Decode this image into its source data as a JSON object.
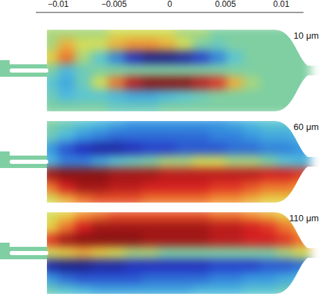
{
  "chart_data": {
    "type": "heatmap",
    "colorbar": {
      "range": [
        -0.012,
        0.012
      ],
      "ticks": [
        {
          "value": -0.01,
          "label": "−0.01"
        },
        {
          "value": -0.005,
          "label": "−0.005"
        },
        0,
        0.005,
        0.01
      ]
    },
    "panels": [
      {
        "label": "10 μm",
        "cells": [
          [
            0.001,
            0.001,
            0.001,
            0.001,
            0.002,
            0.002,
            0.002,
            0.002,
            0.001,
            0.001,
            0,
            0,
            0,
            0,
            0,
            0
          ],
          [
            0.001,
            0.004,
            0.002,
            0.002,
            0.004,
            0.005,
            0.005,
            0.004,
            0.002,
            0,
            -0.001,
            0,
            0,
            0,
            0,
            0
          ],
          [
            0.003,
            0.006,
            0.001,
            -0.002,
            -0.006,
            -0.01,
            -0.012,
            -0.012,
            -0.011,
            -0.009,
            -0.006,
            -0.002,
            0,
            0,
            0,
            0
          ],
          [
            0,
            -0.003,
            -0.001,
            0,
            0,
            0,
            0,
            0,
            0,
            0,
            0,
            0,
            0,
            0,
            0,
            0
          ],
          [
            -0.002,
            -0.004,
            -0.001,
            0.002,
            0.006,
            0.01,
            0.012,
            0.012,
            0.012,
            0.01,
            0.008,
            0.004,
            0.001,
            0,
            0,
            0
          ],
          [
            -0.001,
            -0.003,
            -0.002,
            -0.002,
            -0.003,
            -0.004,
            -0.004,
            -0.003,
            -0.002,
            -0.001,
            0,
            0,
            0,
            0,
            0,
            0
          ],
          [
            0,
            0,
            0,
            0,
            -0.001,
            -0.001,
            -0.001,
            0,
            0,
            0,
            0,
            0,
            0,
            0,
            0,
            0
          ]
        ]
      },
      {
        "label": "60 μm",
        "cells": [
          [
            0,
            -0.001,
            -0.002,
            -0.003,
            -0.004,
            -0.005,
            -0.005,
            -0.005,
            -0.005,
            -0.005,
            -0.005,
            -0.004,
            -0.003,
            -0.002,
            -0.002,
            -0.001
          ],
          [
            -0.001,
            -0.003,
            -0.005,
            -0.006,
            -0.007,
            -0.007,
            -0.007,
            -0.007,
            -0.007,
            -0.007,
            -0.006,
            -0.006,
            -0.005,
            -0.004,
            -0.004,
            -0.003
          ],
          [
            -0.005,
            -0.008,
            -0.01,
            -0.011,
            -0.011,
            -0.01,
            -0.009,
            -0.009,
            -0.008,
            -0.008,
            -0.008,
            -0.007,
            -0.007,
            -0.006,
            -0.006,
            -0.005
          ],
          [
            -0.003,
            -0.006,
            -0.006,
            -0.004,
            -0.002,
            -0.001,
            0,
            0.001,
            0.001,
            0.002,
            0.002,
            0.001,
            0.001,
            0,
            -0.002,
            -0.003
          ],
          [
            0.011,
            0.012,
            0.012,
            0.012,
            0.011,
            0.011,
            0.011,
            0.01,
            0.01,
            0.01,
            0.01,
            0.01,
            0.01,
            0.009,
            0.009,
            0.008
          ],
          [
            0.006,
            0.009,
            0.011,
            0.011,
            0.01,
            0.01,
            0.009,
            0.009,
            0.009,
            0.009,
            0.008,
            0.008,
            0.007,
            0.006,
            0.006,
            0.005
          ],
          [
            0.002,
            0.004,
            0.006,
            0.007,
            0.007,
            0.007,
            0.006,
            0.006,
            0.006,
            0.006,
            0.005,
            0.005,
            0.004,
            0.003,
            0.003,
            0.002
          ]
        ]
      },
      {
        "label": "110 μm",
        "cells": [
          [
            0.002,
            0.003,
            0.005,
            0.006,
            0.007,
            0.007,
            0.007,
            0.007,
            0.007,
            0.007,
            0.006,
            0.006,
            0.005,
            0.004,
            0.003,
            0.002
          ],
          [
            0.003,
            0.006,
            0.009,
            0.011,
            0.011,
            0.011,
            0.011,
            0.011,
            0.011,
            0.011,
            0.01,
            0.01,
            0.009,
            0.008,
            0.006,
            0.004
          ],
          [
            0.008,
            0.011,
            0.012,
            0.012,
            0.012,
            0.012,
            0.011,
            0.011,
            0.011,
            0.011,
            0.01,
            0.01,
            0.009,
            0.009,
            0.008,
            0.006
          ],
          [
            0.002,
            0.003,
            0.004,
            0.003,
            0.002,
            0.001,
            0.001,
            0,
            0,
            0,
            0,
            0,
            0,
            0,
            0.001,
            0.002
          ],
          [
            -0.011,
            -0.012,
            -0.012,
            -0.011,
            -0.011,
            -0.01,
            -0.01,
            -0.01,
            -0.01,
            -0.01,
            -0.009,
            -0.009,
            -0.009,
            -0.008,
            -0.008,
            -0.007
          ],
          [
            -0.005,
            -0.007,
            -0.008,
            -0.008,
            -0.008,
            -0.008,
            -0.007,
            -0.007,
            -0.007,
            -0.007,
            -0.006,
            -0.006,
            -0.005,
            -0.005,
            -0.004,
            -0.003
          ],
          [
            -0.001,
            -0.002,
            -0.003,
            -0.004,
            -0.004,
            -0.004,
            -0.004,
            -0.004,
            -0.004,
            -0.003,
            -0.003,
            -0.003,
            -0.002,
            -0.002,
            -0.001,
            -0.001
          ]
        ]
      }
    ]
  }
}
